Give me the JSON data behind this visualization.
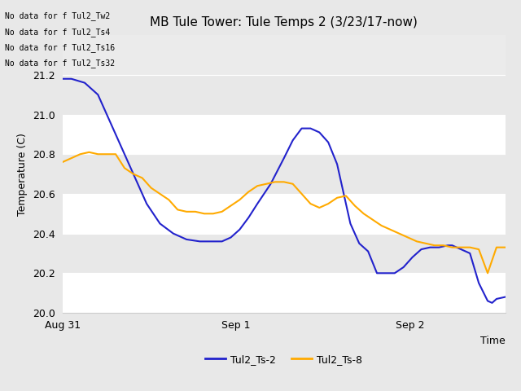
{
  "title": "MB Tule Tower: Tule Temps 2 (3/23/17-now)",
  "xlabel": "Time",
  "ylabel": "Temperature (C)",
  "ylim": [
    20.0,
    21.4
  ],
  "yticks": [
    20.0,
    20.2,
    20.4,
    20.6,
    20.8,
    21.0,
    21.2
  ],
  "xtick_positions": [
    0,
    1.0,
    2.0
  ],
  "xtick_labels": [
    "Aug 31",
    "Sep 1",
    "Sep 2"
  ],
  "xlim": [
    0,
    2.55
  ],
  "outer_bg": "#e8e8e8",
  "plot_bg_light": "#eeeeee",
  "plot_bg_dark": "#e0e0e0",
  "grid_color": "#ffffff",
  "no_data_lines": [
    "No data for f Tul2_Tw2",
    "No data for f Tul2_Ts4",
    "No data for f Tul2_Ts16",
    "No data for f Tul2_Ts32"
  ],
  "line_blue_color": "#2222cc",
  "line_orange_color": "#ffaa00",
  "legend_labels": [
    "Tul2_Ts-2",
    "Tul2_Ts-8"
  ],
  "title_fontsize": 11,
  "axis_fontsize": 9,
  "tick_fontsize": 9,
  "blue_x": [
    0.0,
    0.02,
    0.05,
    0.08,
    0.1,
    0.13,
    0.16,
    0.19,
    0.22,
    0.25,
    0.28,
    0.31,
    0.34,
    0.36,
    0.38,
    0.4,
    0.42,
    0.44,
    0.47,
    0.5,
    0.52,
    0.54,
    0.56,
    0.58,
    0.6,
    0.62,
    0.63,
    0.64,
    0.65,
    0.67,
    0.69,
    0.71,
    0.73,
    0.75,
    0.77,
    0.79,
    0.81,
    0.83,
    0.85,
    0.87,
    0.88,
    0.9,
    0.92,
    0.94,
    0.96,
    0.97,
    0.98,
    1.0
  ],
  "blue_y": [
    21.18,
    21.18,
    21.16,
    21.1,
    21.0,
    20.85,
    20.7,
    20.55,
    20.45,
    20.4,
    20.37,
    20.36,
    20.36,
    20.36,
    20.38,
    20.42,
    20.48,
    20.55,
    20.65,
    20.78,
    20.87,
    20.93,
    20.93,
    20.91,
    20.86,
    20.75,
    20.65,
    20.55,
    20.45,
    20.35,
    20.31,
    20.2,
    20.2,
    20.2,
    20.23,
    20.28,
    20.32,
    20.33,
    20.33,
    20.34,
    20.34,
    20.32,
    20.3,
    20.15,
    20.06,
    20.05,
    20.07,
    20.08
  ],
  "orange_x": [
    0.0,
    0.02,
    0.04,
    0.06,
    0.08,
    0.1,
    0.12,
    0.14,
    0.16,
    0.18,
    0.2,
    0.22,
    0.24,
    0.26,
    0.28,
    0.3,
    0.32,
    0.34,
    0.36,
    0.38,
    0.4,
    0.42,
    0.44,
    0.46,
    0.48,
    0.5,
    0.52,
    0.54,
    0.56,
    0.58,
    0.6,
    0.62,
    0.64,
    0.66,
    0.68,
    0.7,
    0.72,
    0.74,
    0.76,
    0.78,
    0.8,
    0.82,
    0.84,
    0.86,
    0.88,
    0.9,
    0.92,
    0.94,
    0.96,
    0.98,
    1.0
  ],
  "orange_y": [
    20.76,
    20.78,
    20.8,
    20.81,
    20.8,
    20.8,
    20.8,
    20.73,
    20.7,
    20.68,
    20.63,
    20.6,
    20.57,
    20.52,
    20.51,
    20.51,
    20.5,
    20.5,
    20.51,
    20.54,
    20.57,
    20.61,
    20.64,
    20.65,
    20.66,
    20.66,
    20.65,
    20.6,
    20.55,
    20.53,
    20.55,
    20.58,
    20.59,
    20.54,
    20.5,
    20.47,
    20.44,
    20.42,
    20.4,
    20.38,
    20.36,
    20.35,
    20.34,
    20.34,
    20.33,
    20.33,
    20.33,
    20.32,
    20.2,
    20.33,
    20.33
  ]
}
